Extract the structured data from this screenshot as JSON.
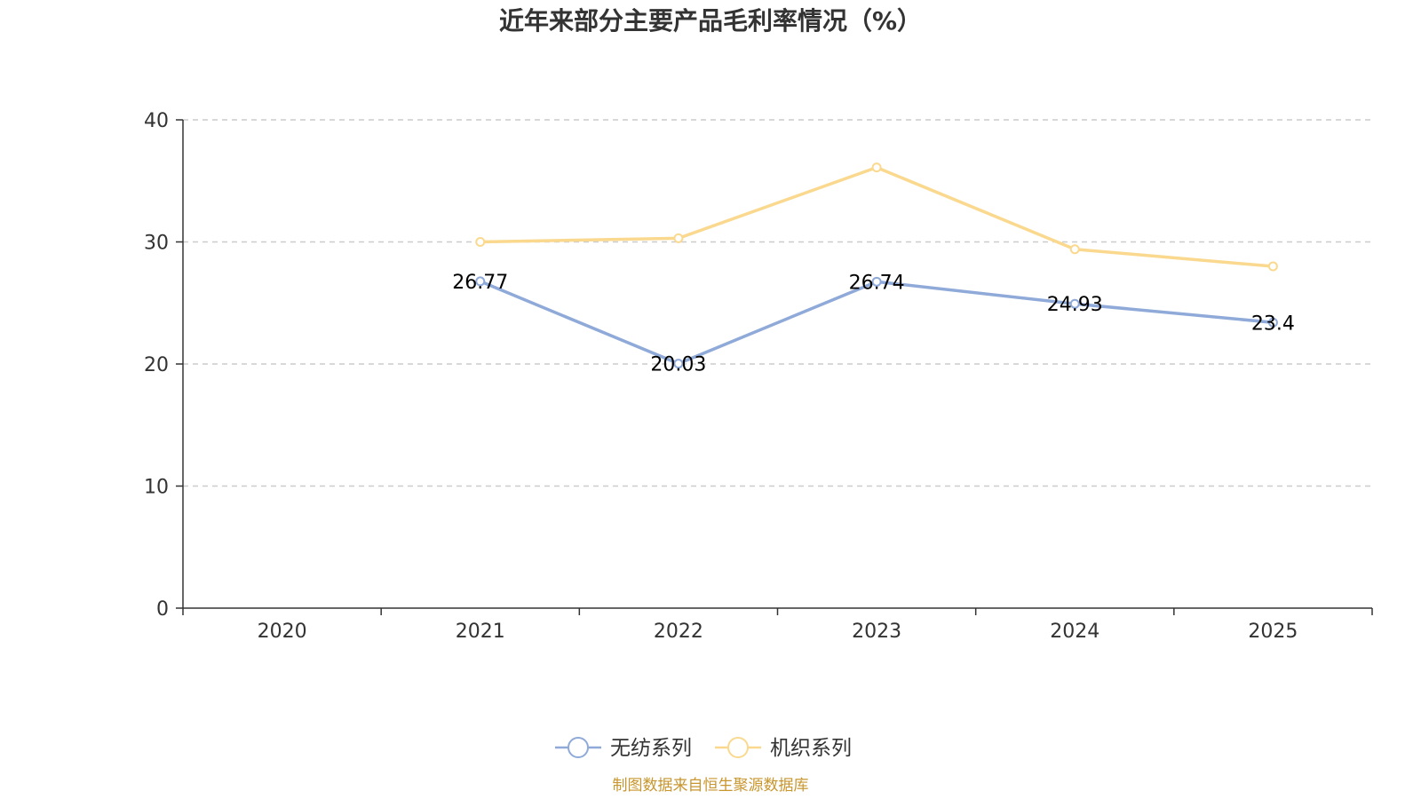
{
  "chart_data": {
    "type": "line",
    "title": "近年来部分主要产品毛利率情况（%）",
    "categories": [
      "2020",
      "2021",
      "2022",
      "2023",
      "2024",
      "2025"
    ],
    "ylim": [
      0,
      40
    ],
    "yticks": [
      0,
      10,
      20,
      30,
      40
    ],
    "grid": true,
    "legend_position": "bottom-center",
    "series": [
      {
        "name": "无纺系列",
        "color": "#8faad9",
        "values": [
          null,
          26.77,
          20.03,
          26.74,
          24.93,
          23.4
        ],
        "labels": [
          "",
          "26.77",
          "20.03",
          "26.74",
          "24.93",
          "23.4"
        ]
      },
      {
        "name": "机织系列",
        "color": "#fad98f",
        "values": [
          null,
          30.0,
          30.3,
          36.1,
          29.4,
          28.0
        ],
        "labels": [
          "",
          "",
          "",
          "",
          "",
          ""
        ]
      }
    ],
    "source": "制图数据来自恒生聚源数据库",
    "source_color": "#c8962e"
  }
}
